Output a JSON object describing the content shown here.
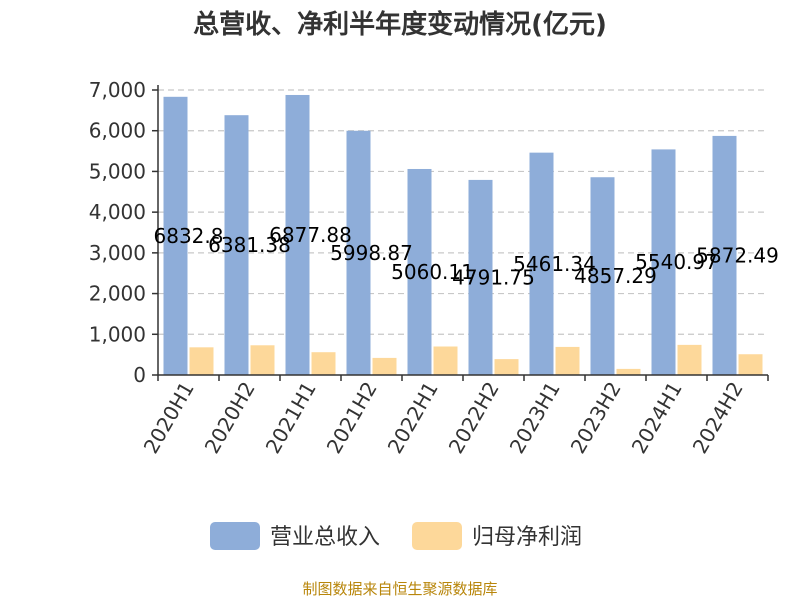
{
  "chart_data": {
    "type": "bar",
    "title": "总营收、净利半年度变动情况(亿元)",
    "categories": [
      "2020H1",
      "2020H2",
      "2021H1",
      "2021H2",
      "2022H1",
      "2022H2",
      "2023H1",
      "2023H2",
      "2024H1",
      "2024H2"
    ],
    "series": [
      {
        "name": "营业总收入",
        "color": "#8eadd9",
        "values": [
          6832.8,
          6381.38,
          6877.88,
          5998.87,
          5060.11,
          4791.75,
          5461.34,
          4857.29,
          5540.97,
          5872.49
        ],
        "labels": [
          "6832.8",
          "6381.38",
          "6877.88",
          "5998.87",
          "5060.11",
          "4791.75",
          "5461.34",
          "4857.29",
          "5540.97",
          "5872.49"
        ]
      },
      {
        "name": "归母净利润",
        "color": "#fdd89a",
        "values": [
          680,
          730,
          560,
          420,
          700,
          390,
          690,
          150,
          740,
          510
        ]
      }
    ],
    "yticks": [
      "0",
      "1,000",
      "2,000",
      "3,000",
      "4,000",
      "5,000",
      "6,000",
      "7,000"
    ],
    "ylim": [
      0,
      7000
    ],
    "grid": true,
    "legend_position": "bottom"
  },
  "source_note": "制图数据来自恒生聚源数据库"
}
